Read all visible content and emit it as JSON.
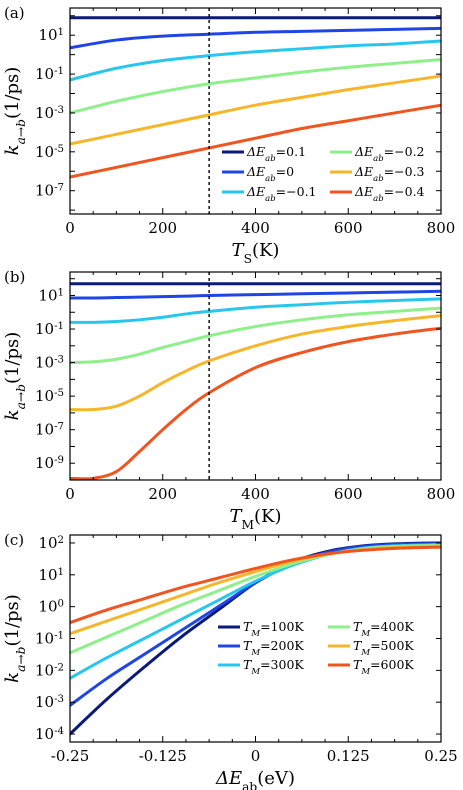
{
  "chart_data": [
    {
      "type": "line",
      "panel_label": "(a)",
      "xlabel": "T",
      "xlabel_sub": "S",
      "xlabel_unit": "(K)",
      "ylabel": "k",
      "ylabel_sub": "a→b",
      "ylabel_unit": "(1/ps)",
      "xlim": [
        0,
        800
      ],
      "ylim_log10": [
        -8.2,
        2.4
      ],
      "y_scale": "log",
      "x_ticks": [
        "0",
        "200",
        "400",
        "600",
        "800"
      ],
      "x_tick_values": [
        0,
        200,
        400,
        600,
        800
      ],
      "y_tick_exponents": [
        -7,
        -5,
        -3,
        -1,
        1
      ],
      "vline_x": 300,
      "legend_position": "bottom-right",
      "legend_columns": 2,
      "x": [
        0,
        100,
        200,
        300,
        400,
        500,
        600,
        700,
        800
      ],
      "series": [
        {
          "name": "ΔE_ab = 0.1",
          "legend_symbol": "ΔE",
          "legend_sub": "ab",
          "legend_value": "=0.1",
          "color": "#0a1a7a",
          "log10_values": [
            1.9,
            1.9,
            1.9,
            1.9,
            1.9,
            1.9,
            1.9,
            1.9,
            1.9
          ]
        },
        {
          "name": "ΔE_ab = 0",
          "legend_symbol": "ΔE",
          "legend_sub": "ab",
          "legend_value": "=0",
          "color": "#1f45e6",
          "log10_values": [
            0.35,
            0.75,
            0.95,
            1.05,
            1.15,
            1.2,
            1.25,
            1.3,
            1.35
          ]
        },
        {
          "name": "ΔE_ab = −0.1",
          "legend_symbol": "ΔE",
          "legend_sub": "ab",
          "legend_value": "=−0.1",
          "color": "#27c6ef",
          "log10_values": [
            -1.3,
            -0.7,
            -0.3,
            -0.05,
            0.15,
            0.3,
            0.45,
            0.55,
            0.7
          ]
        },
        {
          "name": "ΔE_ab = −0.2",
          "legend_symbol": "ΔE",
          "legend_sub": "ab",
          "legend_value": "=−0.2",
          "color": "#8df08a",
          "log10_values": [
            -3.0,
            -2.4,
            -1.9,
            -1.5,
            -1.2,
            -0.9,
            -0.65,
            -0.45,
            -0.25
          ]
        },
        {
          "name": "ΔE_ab = −0.3",
          "legend_symbol": "ΔE",
          "legend_sub": "ab",
          "legend_value": "=−0.3",
          "color": "#f7b52a",
          "log10_values": [
            -4.6,
            -4.1,
            -3.6,
            -3.1,
            -2.6,
            -2.2,
            -1.8,
            -1.45,
            -1.1
          ]
        },
        {
          "name": "ΔE_ab = −0.4",
          "legend_symbol": "ΔE",
          "legend_sub": "ab",
          "legend_value": "=−0.4",
          "color": "#f25420",
          "log10_values": [
            -6.3,
            -5.8,
            -5.3,
            -4.8,
            -4.3,
            -3.8,
            -3.4,
            -3.0,
            -2.6
          ]
        }
      ]
    },
    {
      "type": "line",
      "panel_label": "(b)",
      "xlabel": "T",
      "xlabel_sub": "M",
      "xlabel_unit": "(K)",
      "ylabel": "k",
      "ylabel_sub": "a→b",
      "ylabel_unit": "(1/ps)",
      "xlim": [
        0,
        800
      ],
      "ylim_log10": [
        -10.0,
        2.4
      ],
      "y_scale": "log",
      "x_ticks": [
        "0",
        "200",
        "400",
        "600",
        "800"
      ],
      "x_tick_values": [
        0,
        200,
        400,
        600,
        800
      ],
      "y_tick_exponents": [
        -9,
        -7,
        -5,
        -3,
        -1,
        1
      ],
      "vline_x": 300,
      "x": [
        0,
        50,
        100,
        150,
        200,
        250,
        300,
        400,
        500,
        600,
        700,
        800
      ],
      "series": [
        {
          "name": "ΔE_ab = 0.1",
          "color": "#0a1a7a",
          "log10_values": [
            1.7,
            1.7,
            1.7,
            1.7,
            1.7,
            1.7,
            1.7,
            1.7,
            1.7,
            1.7,
            1.7,
            1.7
          ]
        },
        {
          "name": "ΔE_ab = 0",
          "color": "#1f45e6",
          "log10_values": [
            0.85,
            0.85,
            0.88,
            0.9,
            0.93,
            0.96,
            1.0,
            1.05,
            1.1,
            1.15,
            1.2,
            1.25
          ]
        },
        {
          "name": "ΔE_ab = −0.1",
          "color": "#27c6ef",
          "log10_values": [
            -0.6,
            -0.6,
            -0.55,
            -0.45,
            -0.3,
            -0.1,
            0.05,
            0.3,
            0.45,
            0.6,
            0.7,
            0.8
          ]
        },
        {
          "name": "ΔE_ab = −0.2",
          "color": "#8df08a",
          "log10_values": [
            -3.0,
            -2.95,
            -2.8,
            -2.5,
            -2.1,
            -1.75,
            -1.4,
            -0.85,
            -0.45,
            -0.15,
            0.05,
            0.25
          ]
        },
        {
          "name": "ΔE_ab = −0.3",
          "color": "#f7b52a",
          "log10_values": [
            -5.8,
            -5.8,
            -5.6,
            -5.0,
            -4.2,
            -3.5,
            -2.9,
            -2.0,
            -1.3,
            -0.85,
            -0.5,
            -0.2
          ]
        },
        {
          "name": "ΔE_ab = −0.4",
          "color": "#f25420",
          "log10_values": [
            -9.9,
            -9.9,
            -9.5,
            -8.3,
            -7.0,
            -5.8,
            -4.8,
            -3.3,
            -2.4,
            -1.75,
            -1.3,
            -0.95
          ]
        }
      ]
    },
    {
      "type": "line",
      "panel_label": "(c)",
      "xlabel": "ΔE",
      "xlabel_sub": "ab",
      "xlabel_unit": "(eV)",
      "ylabel": "k",
      "ylabel_sub": "a→b",
      "ylabel_unit": "(1/ps)",
      "xlim": [
        -0.25,
        0.25
      ],
      "ylim_log10": [
        -4.25,
        2.25
      ],
      "y_scale": "log",
      "x_ticks": [
        "-0.25",
        "-0.125",
        "0",
        "0.125",
        "0.25"
      ],
      "x_tick_values": [
        -0.25,
        -0.125,
        0,
        0.125,
        0.25
      ],
      "y_tick_exponents": [
        -4,
        -3,
        -2,
        -1,
        0,
        1,
        2
      ],
      "legend_position": "center-right",
      "legend_columns": 2,
      "x": [
        -0.25,
        -0.2,
        -0.15,
        -0.1,
        -0.05,
        0,
        0.05,
        0.1,
        0.15,
        0.2,
        0.25
      ],
      "series": [
        {
          "name": "T_M = 100K",
          "legend_symbol": "T",
          "legend_sub": "M",
          "legend_value": "=100K",
          "color": "#0a1a7a",
          "log10_values": [
            -4.0,
            -2.9,
            -1.9,
            -0.95,
            -0.1,
            0.75,
            1.4,
            1.75,
            1.92,
            1.98,
            2.0
          ]
        },
        {
          "name": "T_M = 200K",
          "legend_symbol": "T",
          "legend_sub": "M",
          "legend_value": "=200K",
          "color": "#1f45e6",
          "log10_values": [
            -3.1,
            -2.25,
            -1.5,
            -0.75,
            0.0,
            0.75,
            1.35,
            1.72,
            1.9,
            1.96,
            1.98
          ]
        },
        {
          "name": "T_M = 300K",
          "legend_symbol": "T",
          "legend_sub": "M",
          "legend_value": "=300K",
          "color": "#27c6ef",
          "log10_values": [
            -2.25,
            -1.6,
            -1.0,
            -0.4,
            0.2,
            0.8,
            1.3,
            1.65,
            1.85,
            1.92,
            1.95
          ]
        },
        {
          "name": "T_M = 400K",
          "legend_symbol": "T",
          "legend_sub": "M",
          "legend_value": "=400K",
          "color": "#8df08a",
          "log10_values": [
            -1.45,
            -0.95,
            -0.45,
            0.05,
            0.5,
            0.95,
            1.35,
            1.65,
            1.83,
            1.9,
            1.93
          ]
        },
        {
          "name": "T_M = 500K",
          "legend_symbol": "T",
          "legend_sub": "M",
          "legend_value": "=500K",
          "color": "#f7b52a",
          "log10_values": [
            -0.85,
            -0.45,
            -0.05,
            0.35,
            0.75,
            1.1,
            1.42,
            1.66,
            1.8,
            1.87,
            1.9
          ]
        },
        {
          "name": "T_M = 600K",
          "legend_symbol": "T",
          "legend_sub": "M",
          "legend_value": "=600K",
          "color": "#f25420",
          "log10_values": [
            -0.5,
            -0.1,
            0.25,
            0.6,
            0.9,
            1.2,
            1.47,
            1.67,
            1.78,
            1.84,
            1.87
          ]
        }
      ]
    }
  ]
}
